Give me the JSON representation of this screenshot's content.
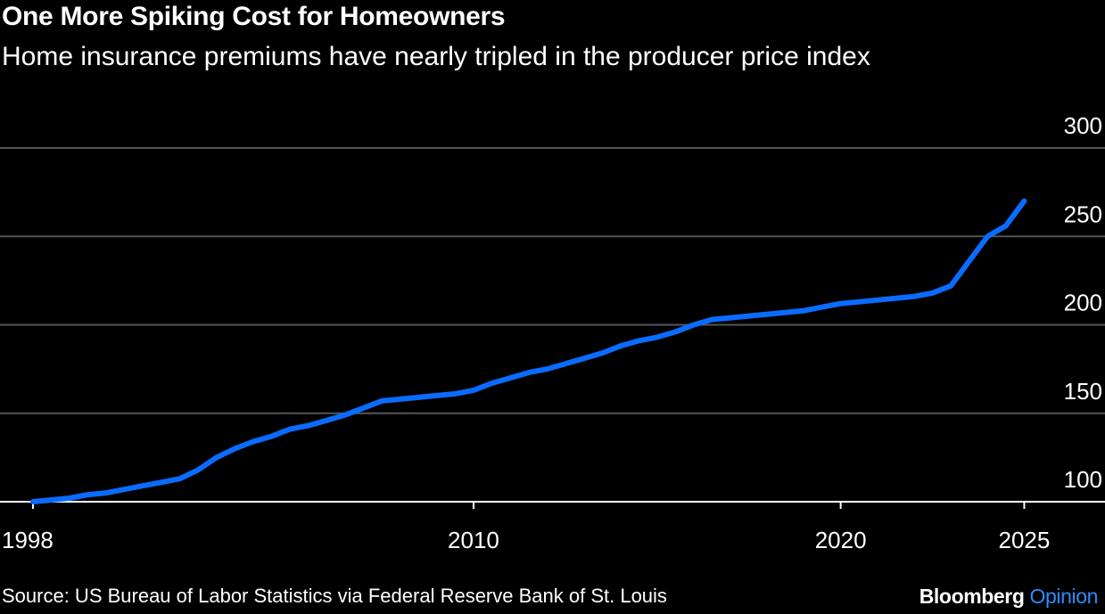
{
  "title": "One More Spiking Cost for Homeowners",
  "subtitle": "Home insurance premiums have nearly tripled in the producer price index",
  "source": "Source: US Bureau of Labor Statistics via Federal Reserve Bank of St. Louis",
  "brand": {
    "name": "Bloomberg",
    "product": "Opinion"
  },
  "colors": {
    "background": "#000000",
    "line": "#0a6cff",
    "grid": "#555555",
    "text": "#ffffff",
    "brand_accent": "#2e8bff"
  },
  "chart_data": {
    "type": "line",
    "title": "One More Spiking Cost for Homeowners",
    "xlabel": "",
    "ylabel": "",
    "xlim": [
      1998,
      2027.2
    ],
    "ylim": [
      100,
      300
    ],
    "yticks": [
      100,
      150,
      200,
      250,
      300
    ],
    "ytick_labels": [
      "100",
      "150",
      "200",
      "250",
      "300"
    ],
    "xticks": [
      1998,
      2010,
      2020,
      2025
    ],
    "xtick_labels": [
      "1998",
      "2010",
      "2020",
      "2025"
    ],
    "grid": true,
    "y_axis_position": "right",
    "legend": "none",
    "series": [
      {
        "x": [
          1998.0,
          1998.5,
          1999.0,
          1999.5,
          2000.0,
          2000.5,
          2001.0,
          2001.5,
          2002.0,
          2002.5,
          2003.0,
          2003.5,
          2004.0,
          2004.5,
          2005.0,
          2005.5,
          2006.0,
          2006.5,
          2007.0,
          2007.5,
          2008.0,
          2008.5,
          2009.0,
          2009.5,
          2010.0,
          2010.5,
          2011.0,
          2011.5,
          2012.0,
          2012.5,
          2013.0,
          2013.5,
          2014.0,
          2014.5,
          2015.0,
          2015.5,
          2016.0,
          2016.5,
          2017.0,
          2017.5,
          2018.0,
          2018.5,
          2019.0,
          2019.5,
          2020.0,
          2020.5,
          2021.0,
          2021.5,
          2022.0,
          2022.5,
          2023.0,
          2023.5,
          2024.0,
          2024.5,
          2025.0
        ],
        "values": [
          100,
          101,
          102,
          104,
          105,
          107,
          109,
          111,
          113,
          118,
          125,
          130,
          134,
          137,
          141,
          143,
          146,
          149,
          153,
          157,
          158,
          159,
          160,
          161,
          163,
          167,
          170,
          173,
          175,
          178,
          181,
          184,
          188,
          191,
          193,
          196,
          200,
          203,
          204,
          205,
          206,
          207,
          208,
          210,
          212,
          213,
          214,
          215,
          216,
          218,
          222,
          236,
          250,
          256,
          270
        ]
      }
    ]
  }
}
